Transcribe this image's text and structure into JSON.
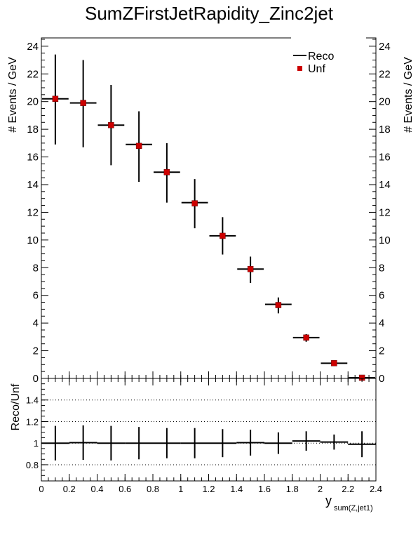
{
  "title": "SumZFirstJetRapidity_Zinc2jet",
  "chart_data": [
    {
      "type": "scatter",
      "panel": "main",
      "ylabel": "# Events / GeV",
      "xlim": [
        0,
        2.4
      ],
      "ylim": [
        0,
        24.6
      ],
      "yticks": [
        0,
        2,
        4,
        6,
        8,
        10,
        12,
        14,
        16,
        18,
        20,
        22,
        24
      ],
      "legend_position": "top-right",
      "bins": [
        [
          0.0,
          0.2
        ],
        [
          0.2,
          0.4
        ],
        [
          0.4,
          0.6
        ],
        [
          0.6,
          0.8
        ],
        [
          0.8,
          1.0
        ],
        [
          1.0,
          1.2
        ],
        [
          1.2,
          1.4
        ],
        [
          1.4,
          1.6
        ],
        [
          1.6,
          1.8
        ],
        [
          1.8,
          2.0
        ],
        [
          2.0,
          2.2
        ],
        [
          2.2,
          2.4
        ]
      ],
      "series": [
        {
          "name": "Reco",
          "color": "#000000",
          "style": "crosses",
          "values": [
            20.2,
            19.9,
            18.3,
            16.9,
            14.9,
            12.7,
            10.3,
            7.9,
            5.35,
            2.95,
            1.1,
            0.05
          ],
          "errors": [
            0.3,
            0.3,
            0.3,
            0.3,
            0.3,
            0.3,
            0.25,
            0.2,
            0.15,
            0.1,
            0.05,
            0.02
          ]
        },
        {
          "name": "Unf",
          "color": "#cc0000",
          "style": "squares",
          "values": [
            20.2,
            19.9,
            18.3,
            16.8,
            14.9,
            12.65,
            10.3,
            7.9,
            5.3,
            2.95,
            1.1,
            0.05
          ],
          "err_low": [
            3.3,
            3.2,
            2.9,
            2.6,
            2.2,
            1.8,
            1.35,
            1.0,
            0.6,
            0.3,
            0.1,
            0.03
          ],
          "err_high": [
            3.2,
            3.1,
            2.9,
            2.5,
            2.1,
            1.75,
            1.35,
            0.9,
            0.55,
            0.25,
            0.1,
            0.03
          ]
        }
      ]
    },
    {
      "type": "scatter",
      "panel": "ratio",
      "xlabel": "y",
      "xlabel_sub": "sum(Z,jet1)",
      "ylabel": "Reco/Unf",
      "xlim": [
        0,
        2.4
      ],
      "ylim": [
        0.65,
        1.6
      ],
      "xticks": [
        0,
        0.2,
        0.4,
        0.6,
        0.8,
        1,
        1.2,
        1.4,
        1.6,
        1.8,
        2,
        2.2,
        2.4
      ],
      "xtick_labels": [
        "0",
        "0.2",
        "0.4",
        "0.6",
        "0.8",
        "1",
        "1.2",
        "1.4",
        "1.6",
        "1.8",
        "2",
        "2.2",
        "2.4"
      ],
      "yticks": [
        0.8,
        1,
        1.2,
        1.4
      ],
      "ytick_labels": [
        "0.8",
        "1",
        "1.2",
        "1.4"
      ],
      "grid_lines": [
        0.8,
        1,
        1.2,
        1.4
      ],
      "series": [
        {
          "name": "Reco/Unf",
          "color": "#000000",
          "values": [
            1.0,
            1.005,
            1.0,
            1.0,
            1.0,
            1.0,
            1.0,
            1.005,
            1.0,
            1.02,
            1.01,
            0.99
          ],
          "errors": [
            0.16,
            0.16,
            0.16,
            0.15,
            0.14,
            0.14,
            0.13,
            0.12,
            0.1,
            0.09,
            0.07,
            0.12
          ]
        }
      ]
    }
  ]
}
